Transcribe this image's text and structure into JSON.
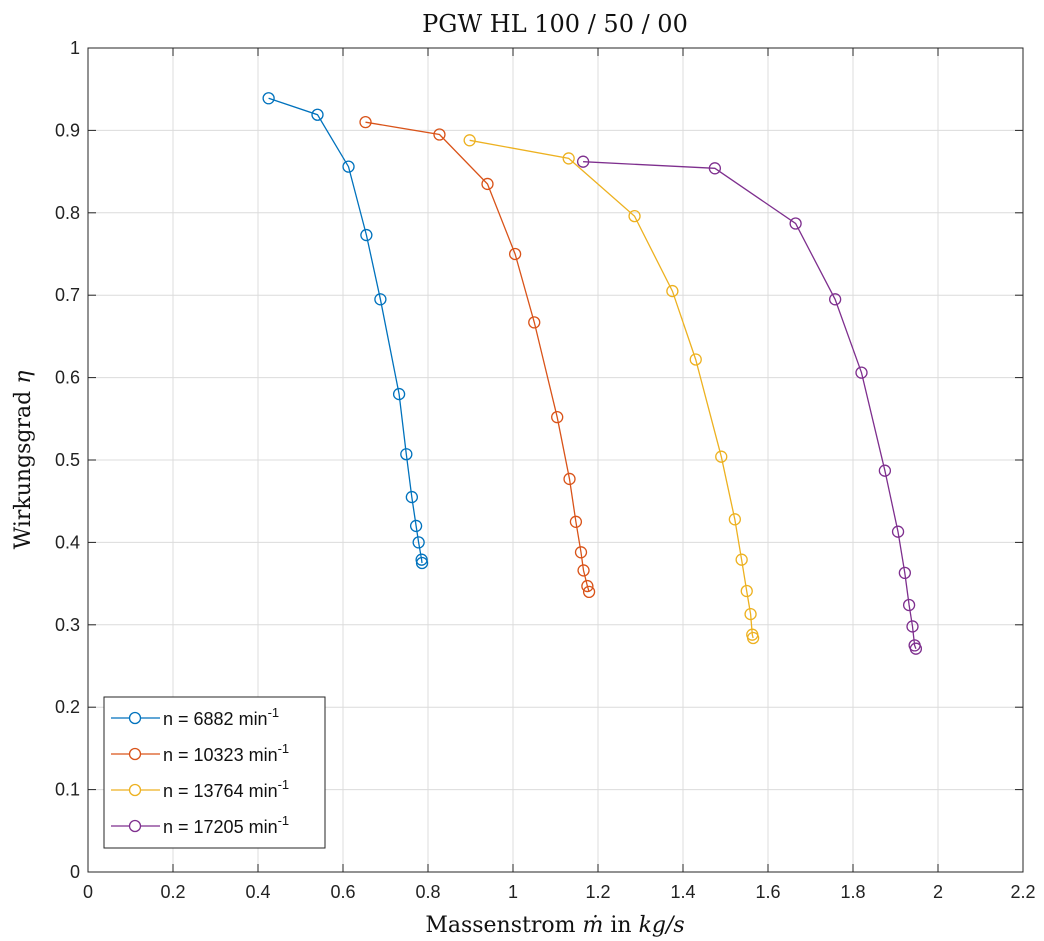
{
  "chart_data": {
    "type": "line",
    "title": "PGW HL 100 / 50 / 00",
    "xlabel_prefix": "Massenstrom ",
    "xlabel_symbol": "ṁ",
    "xlabel_mid": " in ",
    "xlabel_unit": "kg/s",
    "ylabel_prefix": "Wirkungsgrad ",
    "ylabel_symbol": "η",
    "xlim": [
      0,
      2.2
    ],
    "ylim": [
      0,
      1
    ],
    "xticks": [
      "0",
      "0.2",
      "0.4",
      "0.6",
      "0.8",
      "1",
      "1.2",
      "1.4",
      "1.6",
      "1.8",
      "2",
      "2.2"
    ],
    "yticks": [
      "0",
      "0.1",
      "0.2",
      "0.3",
      "0.4",
      "0.5",
      "0.6",
      "0.7",
      "0.8",
      "0.9",
      "1"
    ],
    "grid": true,
    "legend_position": "bottom-left",
    "series": [
      {
        "name_prefix": "n = 6882 min",
        "name_sup": "-1",
        "color": "#0072BD",
        "x": [
          0.425,
          0.54,
          0.613,
          0.655,
          0.688,
          0.732,
          0.749,
          0.762,
          0.772,
          0.778,
          0.785,
          0.786
        ],
        "y": [
          0.939,
          0.919,
          0.856,
          0.773,
          0.695,
          0.58,
          0.507,
          0.455,
          0.42,
          0.4,
          0.379,
          0.375
        ]
      },
      {
        "name_prefix": "n = 10323 min",
        "name_sup": "-1",
        "color": "#D95319",
        "x": [
          0.653,
          0.827,
          0.94,
          1.005,
          1.05,
          1.104,
          1.133,
          1.148,
          1.16,
          1.166,
          1.175,
          1.179
        ],
        "y": [
          0.91,
          0.895,
          0.835,
          0.75,
          0.667,
          0.552,
          0.477,
          0.425,
          0.388,
          0.366,
          0.347,
          0.34
        ]
      },
      {
        "name_prefix": "n = 13764 min",
        "name_sup": "-1",
        "color": "#EDB120",
        "x": [
          0.898,
          1.131,
          1.286,
          1.375,
          1.43,
          1.49,
          1.522,
          1.538,
          1.55,
          1.559,
          1.563,
          1.565
        ],
        "y": [
          0.888,
          0.866,
          0.796,
          0.705,
          0.622,
          0.504,
          0.428,
          0.379,
          0.341,
          0.313,
          0.288,
          0.284
        ]
      },
      {
        "name_prefix": "n = 17205 min",
        "name_sup": "-1",
        "color": "#7E2F8E",
        "x": [
          1.165,
          1.475,
          1.665,
          1.758,
          1.82,
          1.875,
          1.906,
          1.922,
          1.932,
          1.94,
          1.945,
          1.948
        ],
        "y": [
          0.862,
          0.854,
          0.787,
          0.695,
          0.606,
          0.487,
          0.413,
          0.363,
          0.324,
          0.298,
          0.275,
          0.271
        ]
      }
    ]
  }
}
